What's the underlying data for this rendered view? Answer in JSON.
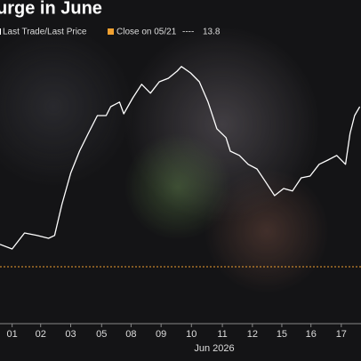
{
  "chart_data": {
    "type": "line",
    "title": "urge in June",
    "xlabel": "Jun 2026",
    "x": [
      -0.4,
      0,
      0.41,
      0.82,
      1.2,
      1.4,
      1.64,
      1.93,
      2.22,
      2.51,
      2.81,
      3.1,
      3.25,
      3.54,
      3.68,
      3.98,
      4.27,
      4.56,
      4.85,
      5.15,
      5.44,
      5.58,
      5.88,
      6.17,
      6.46,
      6.75,
      7.05,
      7.19,
      7.49,
      7.78,
      8.07,
      8.36,
      8.65,
      8.95,
      9.24,
      9.53,
      9.82,
      10.12,
      10.41,
      10.7,
      10.99,
      11.14,
      11.29,
      11.46
    ],
    "series": [
      {
        "name": "Last Trade/Last Price",
        "color": "#ffffff",
        "values": [
          14.43,
          14.3,
          14.75,
          14.68,
          14.6,
          14.68,
          15.55,
          16.43,
          17.05,
          17.55,
          18.05,
          18.05,
          18.3,
          18.43,
          18.1,
          18.55,
          18.93,
          18.68,
          19.0,
          19.1,
          19.3,
          19.43,
          19.25,
          19.0,
          18.43,
          17.68,
          17.43,
          17.05,
          16.93,
          16.68,
          16.55,
          16.18,
          15.8,
          16.0,
          15.93,
          16.3,
          16.35,
          16.68,
          16.8,
          16.93,
          16.68,
          17.55,
          18.05,
          18.3
        ]
      }
    ],
    "reference": {
      "name": "Close on 05/21",
      "value": 13.8,
      "color": "#f0a030"
    },
    "xlim": [
      -0.4,
      11.5
    ],
    "ylim": [
      12,
      21
    ],
    "xticks": [
      {
        "value": 0,
        "label": "01"
      },
      {
        "value": 0.94,
        "label": "02"
      },
      {
        "value": 1.93,
        "label": "03"
      },
      {
        "value": 2.95,
        "label": "05"
      },
      {
        "value": 3.92,
        "label": "08"
      },
      {
        "value": 4.91,
        "label": "09"
      },
      {
        "value": 5.91,
        "label": "10"
      },
      {
        "value": 6.93,
        "label": "11"
      },
      {
        "value": 7.92,
        "label": "12"
      },
      {
        "value": 8.89,
        "label": "15"
      },
      {
        "value": 9.85,
        "label": "16"
      },
      {
        "value": 10.85,
        "label": "17"
      }
    ]
  }
}
